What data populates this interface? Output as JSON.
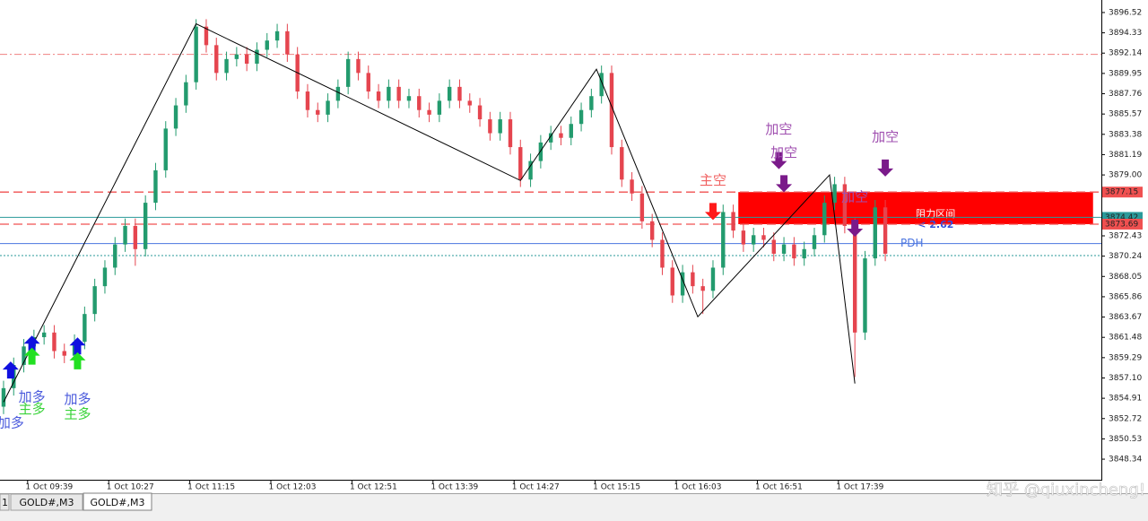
{
  "chart_data": {
    "type": "candlestick",
    "up_color": "#239b6e",
    "down_color": "#e5454f",
    "xlim": [
      -0.35,
      108.32
    ],
    "ylim": [
      3846.12,
      3897.87
    ],
    "yticks": [
      3896.52,
      3894.33,
      3892.14,
      3889.95,
      3887.76,
      3885.57,
      3883.38,
      3881.19,
      {
        "value": 3879.0,
        "label": "3879.00"
      },
      3872.43,
      3870.24,
      3868.05,
      3865.86,
      3863.67,
      3861.48,
      3859.29,
      {
        "value": 3857.1,
        "label": "3857.10"
      },
      3854.91,
      3852.72,
      3850.53,
      3848.34
    ],
    "xticks": [
      {
        "value": 4.5,
        "label": "1 Oct 09:39"
      },
      {
        "value": 12.5,
        "label": "1 Oct 10:27"
      },
      {
        "value": 20.5,
        "label": "1 Oct 11:15"
      },
      {
        "value": 28.5,
        "label": "1 Oct 12:03"
      },
      {
        "value": 36.5,
        "label": "1 Oct 12:51"
      },
      {
        "value": 44.5,
        "label": "1 Oct 13:39"
      },
      {
        "value": 52.5,
        "label": "1 Oct 14:27"
      },
      {
        "value": 60.5,
        "label": "1 Oct 15:15"
      },
      {
        "value": 68.5,
        "label": "1 Oct 16:03"
      },
      {
        "value": 76.5,
        "label": "1 Oct 16:51"
      },
      {
        "value": 84.5,
        "label": "1 Oct 17:39"
      }
    ],
    "open": [
      3854.0,
      3856.0,
      3858.5,
      3860.5,
      3861.5,
      3862.0,
      3860.0,
      3859.5,
      3861.0,
      3864.0,
      3867.0,
      3869.0,
      3871.5,
      3873.5,
      3871.0,
      3876.0,
      3879.5,
      3884.0,
      3886.5,
      3889.0,
      3895.0,
      3893.0,
      3890.0,
      3891.5,
      3892.0,
      3891.0,
      3892.5,
      3893.5,
      3894.5,
      3892.0,
      3888.0,
      3886.0,
      3885.5,
      3887.0,
      3888.5,
      3891.5,
      3890.0,
      3888.0,
      3887.0,
      3888.5,
      3887.0,
      3887.5,
      3886.0,
      3885.5,
      3887.0,
      3888.5,
      3887.0,
      3886.5,
      3885.0,
      3883.5,
      3885.0,
      3882.0,
      3878.5,
      3880.5,
      3882.5,
      3883.5,
      3883.0,
      3884.5,
      3886.0,
      3887.5,
      3890.0,
      3882.0,
      3878.5,
      3877.0,
      3874.0,
      3872.0,
      3869.0,
      3866.0,
      3868.5,
      3867.0,
      3866.5,
      3869.0,
      3875.0,
      3873.0,
      3871.5,
      3872.5,
      3872.0,
      3870.5,
      3871.5,
      3870.0,
      3871.0,
      3872.5,
      3876.0,
      3878.0,
      3873.5,
      3862.0,
      3870.0,
      3875.5
    ],
    "high": [
      3856.8,
      3859.3,
      3861.3,
      3862.3,
      3862.8,
      3862.8,
      3860.8,
      3861.8,
      3864.8,
      3867.8,
      3869.8,
      3872.3,
      3874.3,
      3874.3,
      3876.8,
      3880.3,
      3884.8,
      3887.3,
      3889.8,
      3895.8,
      3895.8,
      3893.8,
      3892.3,
      3892.8,
      3892.8,
      3893.3,
      3894.3,
      3895.3,
      3895.3,
      3892.8,
      3888.8,
      3886.8,
      3887.8,
      3889.3,
      3892.3,
      3892.3,
      3890.8,
      3888.8,
      3889.3,
      3889.3,
      3888.3,
      3888.3,
      3886.8,
      3887.8,
      3889.3,
      3889.3,
      3887.8,
      3887.3,
      3885.8,
      3885.8,
      3885.8,
      3882.8,
      3881.3,
      3883.3,
      3884.3,
      3884.3,
      3885.3,
      3886.8,
      3888.3,
      3890.8,
      3890.8,
      3882.8,
      3879.3,
      3877.8,
      3874.8,
      3872.8,
      3869.8,
      3869.3,
      3869.3,
      3867.8,
      3869.8,
      3875.8,
      3875.8,
      3873.8,
      3873.3,
      3873.3,
      3872.8,
      3872.3,
      3872.3,
      3871.8,
      3873.3,
      3876.8,
      3878.8,
      3878.8,
      3874.3,
      3870.8,
      3876.3,
      3876.3
    ],
    "low": [
      3853.2,
      3855.2,
      3857.7,
      3859.7,
      3860.7,
      3859.2,
      3858.7,
      3858.7,
      3860.2,
      3863.2,
      3866.2,
      3868.2,
      3870.7,
      3869.2,
      3870.2,
      3875.2,
      3878.7,
      3883.2,
      3885.7,
      3888.2,
      3892.2,
      3889.2,
      3889.2,
      3890.7,
      3890.2,
      3890.2,
      3891.7,
      3892.7,
      3891.2,
      3887.2,
      3885.2,
      3884.7,
      3884.7,
      3886.2,
      3887.7,
      3889.2,
      3887.2,
      3886.2,
      3886.2,
      3886.2,
      3886.2,
      3885.2,
      3884.7,
      3884.7,
      3886.2,
      3886.2,
      3885.7,
      3884.2,
      3882.7,
      3882.7,
      3881.2,
      3877.7,
      3877.7,
      3879.7,
      3881.7,
      3882.2,
      3882.2,
      3883.7,
      3885.2,
      3886.7,
      3881.2,
      3877.7,
      3876.2,
      3873.2,
      3871.2,
      3868.2,
      3865.2,
      3865.2,
      3866.2,
      3864.0,
      3865.7,
      3868.2,
      3872.2,
      3870.7,
      3870.7,
      3871.2,
      3869.7,
      3869.7,
      3869.2,
      3869.2,
      3870.2,
      3871.7,
      3875.2,
      3872.7,
      3857.2,
      3861.2,
      3869.2,
      3869.7
    ],
    "close": [
      3856.0,
      3858.5,
      3860.5,
      3861.5,
      3862.0,
      3860.0,
      3859.5,
      3861.0,
      3864.0,
      3867.0,
      3869.0,
      3871.5,
      3873.5,
      3871.0,
      3876.0,
      3879.5,
      3884.0,
      3886.5,
      3889.0,
      3895.0,
      3893.0,
      3890.0,
      3891.5,
      3892.0,
      3891.0,
      3892.5,
      3893.5,
      3894.5,
      3892.0,
      3888.0,
      3886.0,
      3885.5,
      3887.0,
      3888.5,
      3891.5,
      3890.0,
      3888.0,
      3887.0,
      3888.5,
      3887.0,
      3887.5,
      3886.0,
      3885.5,
      3887.0,
      3888.5,
      3887.0,
      3886.5,
      3885.0,
      3883.5,
      3885.0,
      3882.0,
      3878.5,
      3880.5,
      3882.5,
      3883.5,
      3883.0,
      3884.5,
      3886.0,
      3887.5,
      3890.0,
      3882.0,
      3878.5,
      3877.0,
      3874.0,
      3872.0,
      3869.0,
      3866.0,
      3868.5,
      3867.0,
      3866.5,
      3869.0,
      3875.0,
      3873.0,
      3871.5,
      3872.5,
      3872.0,
      3870.5,
      3871.5,
      3870.0,
      3871.0,
      3872.5,
      3876.0,
      3878.0,
      3873.5,
      3862.0,
      3870.0,
      3875.5,
      3870.5
    ],
    "zigzag": {
      "color": "#000000",
      "x": [
        0,
        19,
        51,
        58.5,
        68.5,
        81.5,
        84
      ],
      "y": [
        3854.5,
        3895.3,
        3878.4,
        3890.4,
        3863.7,
        3879.0,
        3856.5
      ]
    },
    "levels": [
      {
        "price": 3892.0,
        "color": "#f08080",
        "style": "dashdot"
      },
      {
        "price": 3877.15,
        "color": "#f05050",
        "style": "dashed",
        "price_label": "3877.15"
      },
      {
        "price": 3874.42,
        "color": "#2a9a9a",
        "style": "solid",
        "price_label": "3874.42"
      },
      {
        "price": 3873.69,
        "color": "#f05050",
        "style": "dashed",
        "price_label": "3873.69"
      },
      {
        "price": 3871.6,
        "color": "#4a74e0",
        "style": "solid",
        "label": "PDH"
      },
      {
        "price": 3870.3,
        "color": "#2a9a9a",
        "style": "dotted"
      }
    ],
    "zone": {
      "x": [
        72.5,
        107.5
      ],
      "y": [
        3873.69,
        3877.15
      ],
      "color": "#ff0000",
      "label": "阻力区间",
      "note": "< 2.62"
    },
    "signals": [
      {
        "x": 0.7,
        "price": 3858.0,
        "direction": "up",
        "color": "#1010e0",
        "label": "加多",
        "label_color": "#4a5adc"
      },
      {
        "x": 2.8,
        "price": 3860.8,
        "direction": "up",
        "color": "#1010e0",
        "label": "加多",
        "label_color": "#4a5adc"
      },
      {
        "x": 2.8,
        "price": 3859.5,
        "direction": "up",
        "color": "#22e022",
        "label": "主多",
        "label_color": "#3ad33a"
      },
      {
        "x": 7.3,
        "price": 3860.6,
        "direction": "up",
        "color": "#1010e0",
        "label": "加多",
        "label_color": "#4a5adc"
      },
      {
        "x": 7.3,
        "price": 3859.0,
        "direction": "up",
        "color": "#22e022",
        "label": "主多",
        "label_color": "#3ad33a"
      },
      {
        "x": 70,
        "price": 3875.0,
        "direction": "down",
        "color": "#ff1a1a",
        "label": "主空",
        "label_color": "#f06060"
      },
      {
        "x": 76.5,
        "price": 3880.5,
        "direction": "down",
        "color": "#7a1a8a",
        "label": "加空",
        "label_color": "#a050b0"
      },
      {
        "x": 77,
        "price": 3878.0,
        "direction": "down",
        "color": "#7a1a8a",
        "label": "加空",
        "label_color": "#a050b0"
      },
      {
        "x": 84,
        "price": 3873.2,
        "direction": "down",
        "color": "#7a1a8a",
        "label": "加空",
        "label_color": "#a050b0"
      },
      {
        "x": 87,
        "price": 3879.7,
        "direction": "down",
        "color": "#7a1a8a",
        "label": "加空",
        "label_color": "#a050b0"
      }
    ]
  },
  "tabs": [
    "1",
    "GOLD#,M3",
    "GOLD#,M3"
  ],
  "watermark": "知乎 @qiuxincheng!"
}
